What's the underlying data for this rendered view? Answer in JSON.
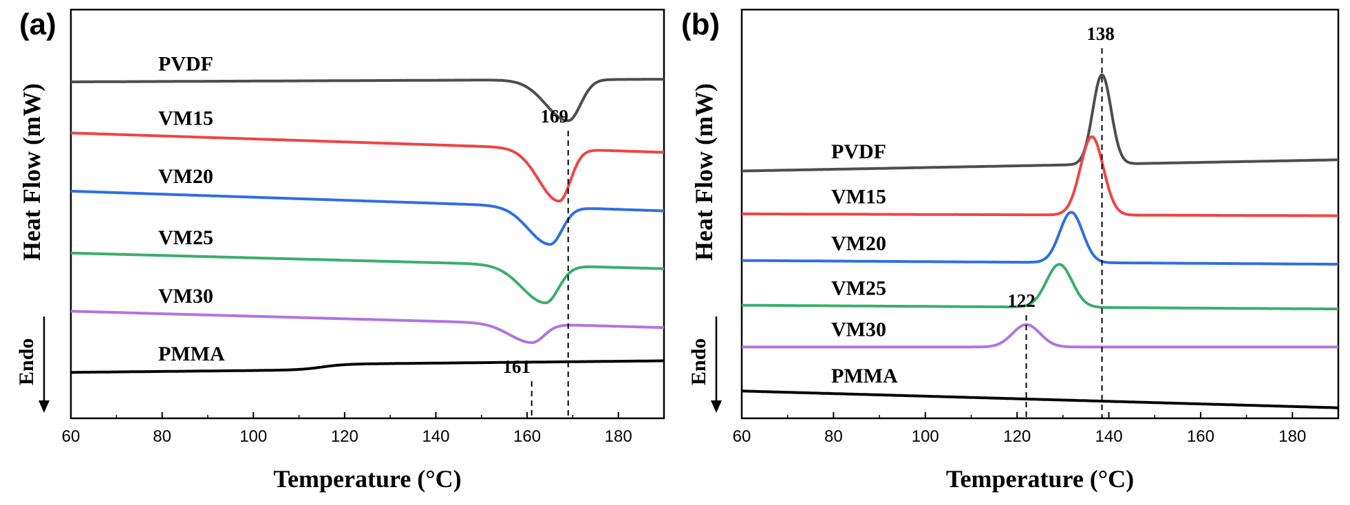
{
  "figure": {
    "colors": {
      "PVDF": "#4d4d4d",
      "VM15": "#ef4444",
      "VM20": "#2f6fe0",
      "VM25": "#3aae6b",
      "VM30": "#b074e0",
      "PMMA": "#000000"
    }
  },
  "chart_data": [
    {
      "panel": "(a)",
      "type": "line",
      "title": "",
      "xlabel": "Temperature (°C)",
      "ylabel": "Heat Flow (mW)",
      "endo_label": "Endo",
      "xlim": [
        60,
        190
      ],
      "xticks": [
        60,
        80,
        100,
        120,
        140,
        160,
        180
      ],
      "ylim": [
        0,
        100
      ],
      "yticks_visible": false,
      "peak_type": "endothermic (dips)",
      "series": [
        {
          "name": "PVDF",
          "baseline_at_60": 86.9,
          "baseline_at_190": 87.6,
          "peak_T": 169,
          "peak_depth": 11.0,
          "peak_width": 3.6
        },
        {
          "name": "VM15",
          "baseline_at_60": 73.2,
          "baseline_at_190": 68.0,
          "peak_T": 167,
          "peak_depth": 14.0,
          "peak_width": 3.3
        },
        {
          "name": "VM20",
          "baseline_at_60": 57.6,
          "baseline_at_190": 52.3,
          "peak_T": 165,
          "peak_depth": 10.0,
          "peak_width": 3.5
        },
        {
          "name": "VM25",
          "baseline_at_60": 41.0,
          "baseline_at_190": 36.8,
          "peak_T": 164,
          "peak_depth": 10.0,
          "peak_width": 3.8
        },
        {
          "name": "VM30",
          "baseline_at_60": 25.4,
          "baseline_at_190": 21.0,
          "peak_T": 161,
          "peak_depth": 5.0,
          "peak_width": 3.6
        },
        {
          "name": "PMMA",
          "baseline_at_60": 9.0,
          "baseline_at_190": 10.6,
          "glass_transition_T": 115
        }
      ],
      "annotations": [
        {
          "text": "169",
          "x": 169
        },
        {
          "text": "161",
          "x": 161
        }
      ]
    },
    {
      "panel": "(b)",
      "type": "line",
      "title": "",
      "xlabel": "Temperature (°C)",
      "ylabel": "Heat Flow (mW)",
      "endo_label": "Endo",
      "xlim": [
        60,
        190
      ],
      "xticks": [
        60,
        80,
        100,
        120,
        140,
        160,
        180
      ],
      "ylim": [
        0,
        100
      ],
      "yticks_visible": false,
      "peak_type": "exothermic (crystallization peaks)",
      "series": [
        {
          "name": "PVDF",
          "baseline_at_60": 63.0,
          "baseline_at_190": 66.0,
          "peak_T": 138.5,
          "peak_height": 24.0,
          "peak_width": 2.0
        },
        {
          "name": "VM15",
          "baseline_at_60": 51.5,
          "baseline_at_190": 51.0,
          "peak_T": 136.3,
          "peak_height": 21.0,
          "peak_width": 2.5
        },
        {
          "name": "VM20",
          "baseline_at_60": 39.0,
          "baseline_at_190": 38.0,
          "peak_T": 131.8,
          "peak_height": 13.5,
          "peak_width": 2.5
        },
        {
          "name": "VM25",
          "baseline_at_60": 27.0,
          "baseline_at_190": 26.0,
          "peak_T": 129.2,
          "peak_height": 11.5,
          "peak_width": 2.8
        },
        {
          "name": "VM30",
          "baseline_at_60": 15.8,
          "baseline_at_190": 15.8,
          "peak_T": 122.0,
          "peak_height": 6.0,
          "peak_width": 3.0
        },
        {
          "name": "PMMA",
          "baseline_at_60": 4.0,
          "baseline_at_190": -0.5
        }
      ],
      "annotations": [
        {
          "text": "138",
          "x": 138.5
        },
        {
          "text": "122",
          "x": 122
        }
      ]
    }
  ]
}
